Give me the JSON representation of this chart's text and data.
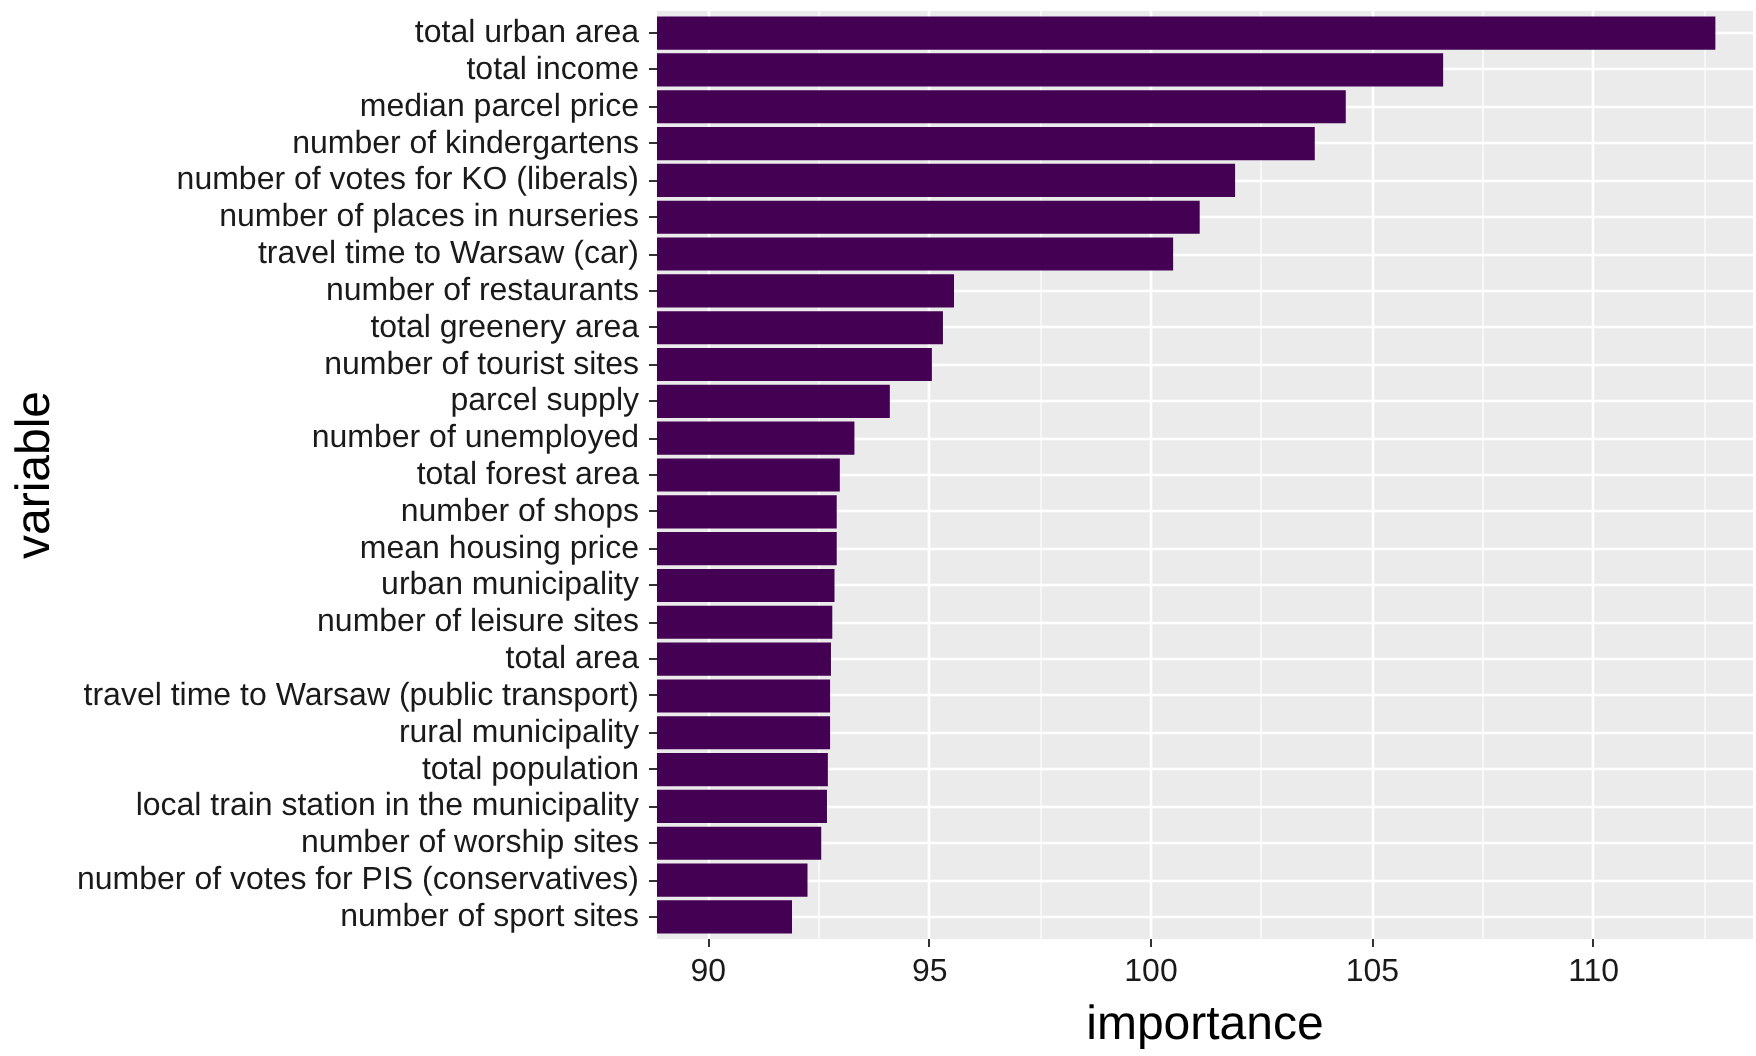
{
  "chart_data": {
    "type": "bar",
    "orientation": "horizontal",
    "xlabel": "importance",
    "ylabel": "variable",
    "categories": [
      "total urban area",
      "total income",
      "median parcel price",
      "number of kindergartens",
      "number of votes for KO (liberals)",
      "number of places in nurseries",
      "travel time to Warsaw (car)",
      "number of restaurants",
      "total greenery area",
      "number of tourist sites",
      "parcel supply",
      "number of unemployed",
      "total forest area",
      "number of shops",
      "mean housing price",
      "urban municipality",
      "number of leisure sites",
      "total area",
      "travel time to Warsaw (public transport)",
      "rural municipality",
      "total population",
      "local train station in the municipality",
      "number of worship sites",
      "number of votes for PIS (conservatives)",
      "number of sport sites"
    ],
    "values": [
      112.75,
      106.6,
      104.4,
      103.7,
      101.9,
      101.1,
      100.5,
      95.55,
      95.3,
      95.05,
      94.1,
      93.3,
      92.97,
      92.9,
      92.9,
      92.85,
      92.8,
      92.77,
      92.75,
      92.75,
      92.7,
      92.68,
      92.55,
      92.24,
      91.89
    ],
    "color": "#440154",
    "xlim": [
      88.84,
      113.6
    ],
    "xticks": [
      90,
      95,
      100,
      105,
      110
    ],
    "grid": true
  }
}
